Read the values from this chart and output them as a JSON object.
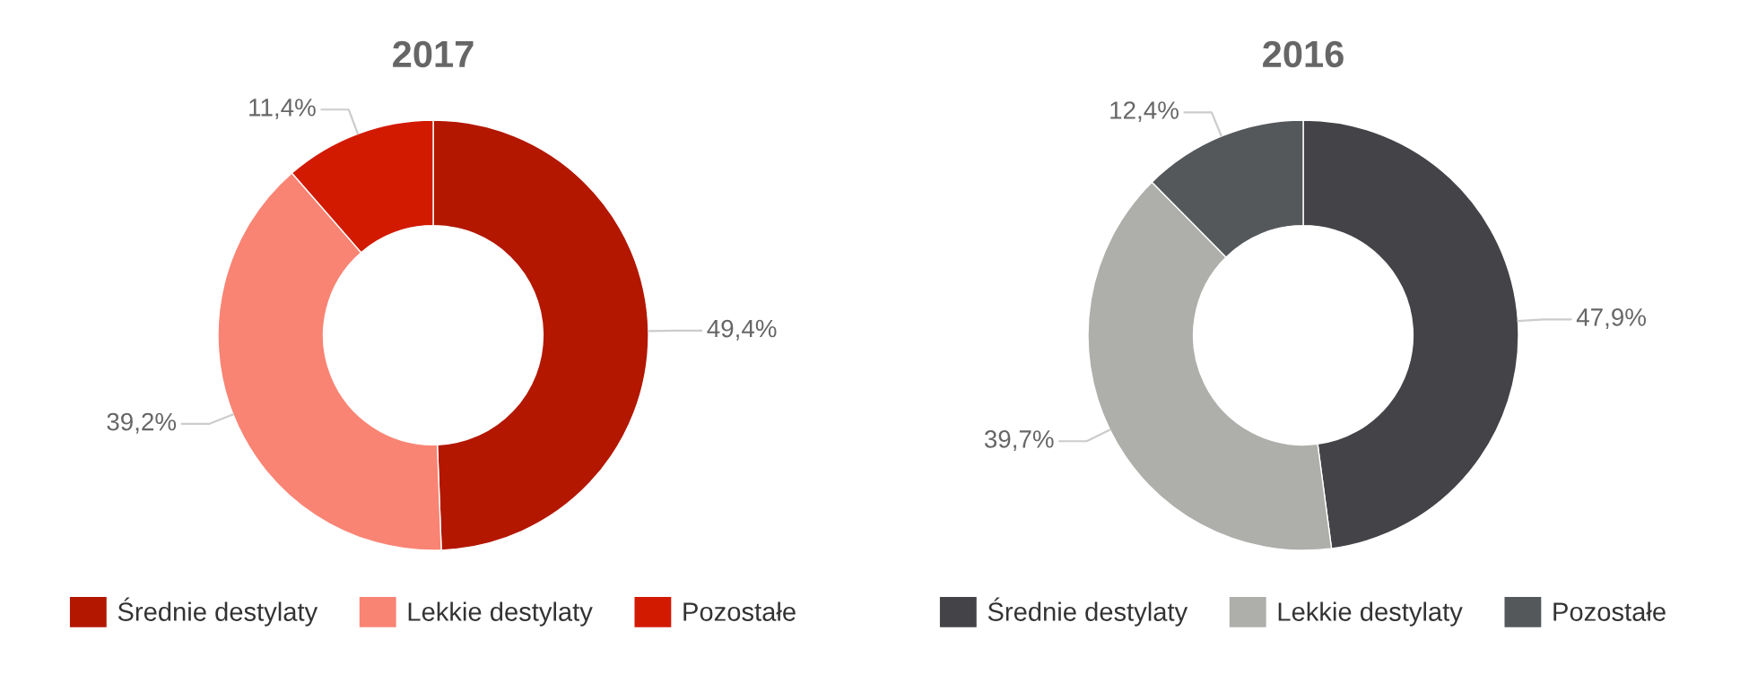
{
  "chart_data": [
    {
      "type": "donut",
      "title": "2017",
      "categories": [
        "Średnie destylaty",
        "Lekkie destylaty",
        "Pozostałe"
      ],
      "values": [
        49.4,
        39.2,
        11.4
      ],
      "colors": [
        "#b31700",
        "#f98474",
        "#d21a00"
      ],
      "value_labels": [
        "49,4%",
        "39,2%",
        "11,4%"
      ],
      "legend": "bottom"
    },
    {
      "type": "donut",
      "title": "2016",
      "categories": [
        "Średnie destylaty",
        "Lekkie destylaty",
        "Pozostałe"
      ],
      "values": [
        47.9,
        39.7,
        12.4
      ],
      "colors": [
        "#444448",
        "#aeaeaa",
        "#55585b"
      ],
      "value_labels": [
        "47,9%",
        "39,7%",
        "12,4%"
      ],
      "legend": "bottom"
    }
  ]
}
